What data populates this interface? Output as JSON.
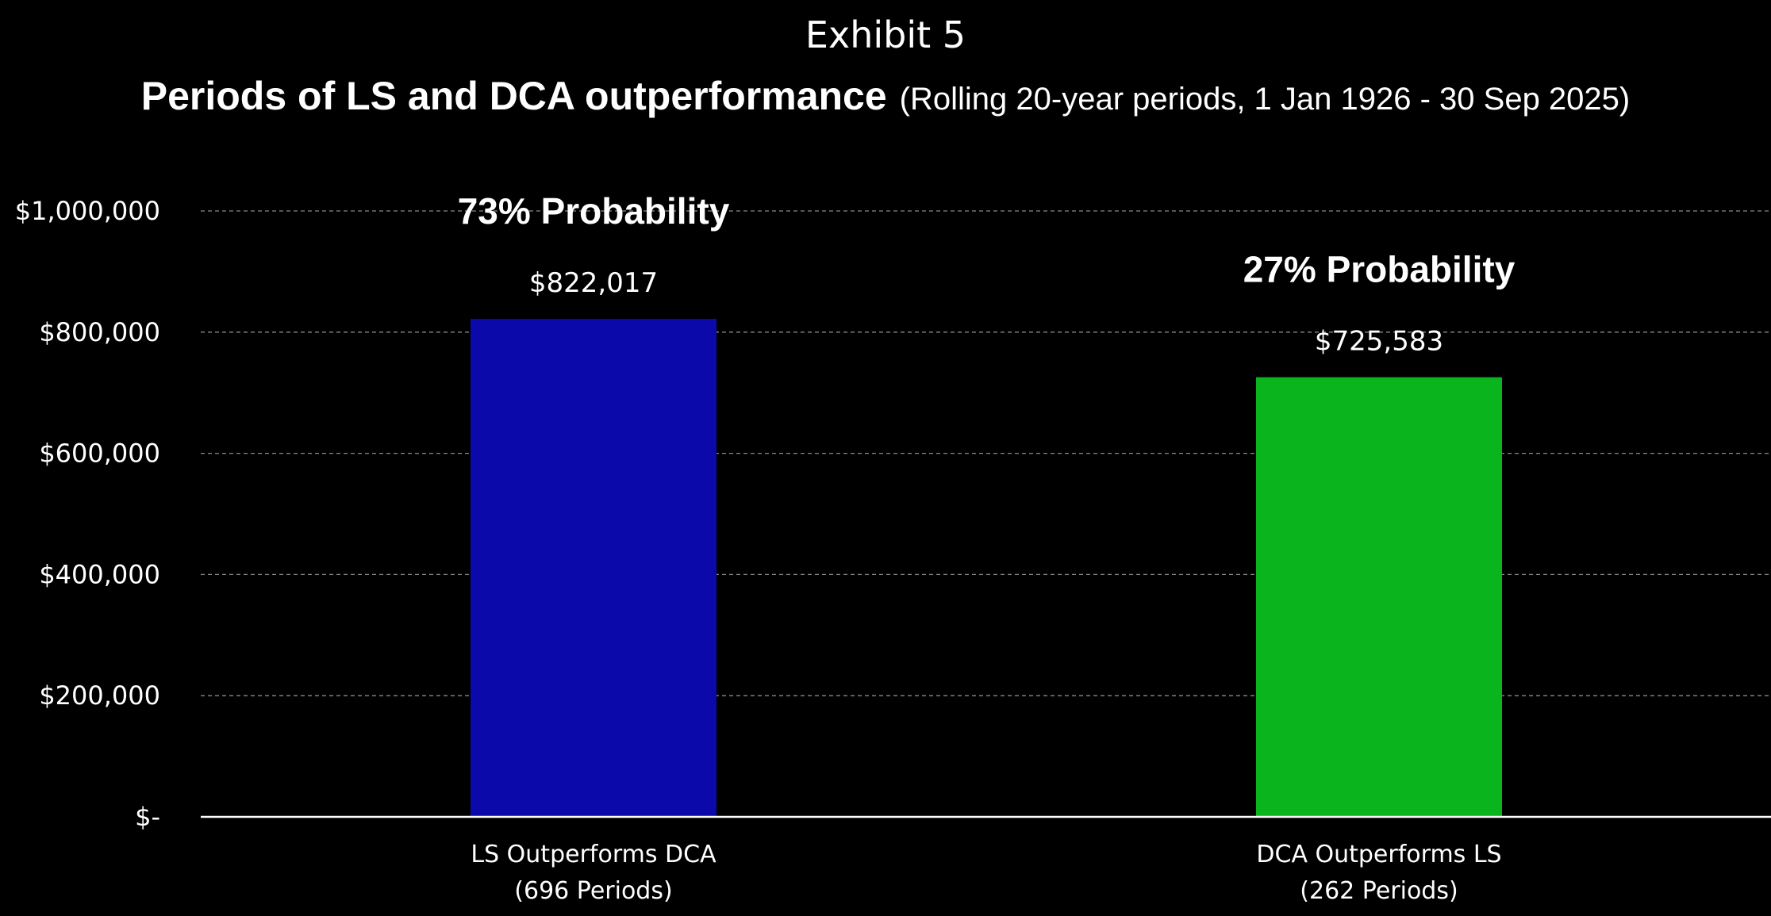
{
  "chart_data": {
    "type": "bar",
    "exhibit_label": "Exhibit 5",
    "title": "Periods of LS and DCA outperformance",
    "subtitle": "(Rolling 20-year periods, 1 Jan 1926 - 30 Sep 2025)",
    "categories": [
      {
        "line1": "LS Outperforms DCA",
        "line2": "(696 Periods)",
        "value": 822017,
        "value_label": "$822,017",
        "probability_label": "73% Probability",
        "color": "#0c09aa"
      },
      {
        "line1": "DCA Outperforms LS",
        "line2": "(262 Periods)",
        "value": 725583,
        "value_label": "$725,583",
        "probability_label": "27% Probability",
        "color": "#0ab41c"
      }
    ],
    "ylim": [
      0,
      1000000
    ],
    "yticks": [
      {
        "value": 0,
        "label": "$-"
      },
      {
        "value": 200000,
        "label": "$200,000"
      },
      {
        "value": 400000,
        "label": "$400,000"
      },
      {
        "value": 600000,
        "label": "$600,000"
      },
      {
        "value": 800000,
        "label": "$800,000"
      },
      {
        "value": 1000000,
        "label": "$1,000,000"
      }
    ],
    "grid": true,
    "legend": "none",
    "xlabel": "",
    "ylabel": ""
  }
}
